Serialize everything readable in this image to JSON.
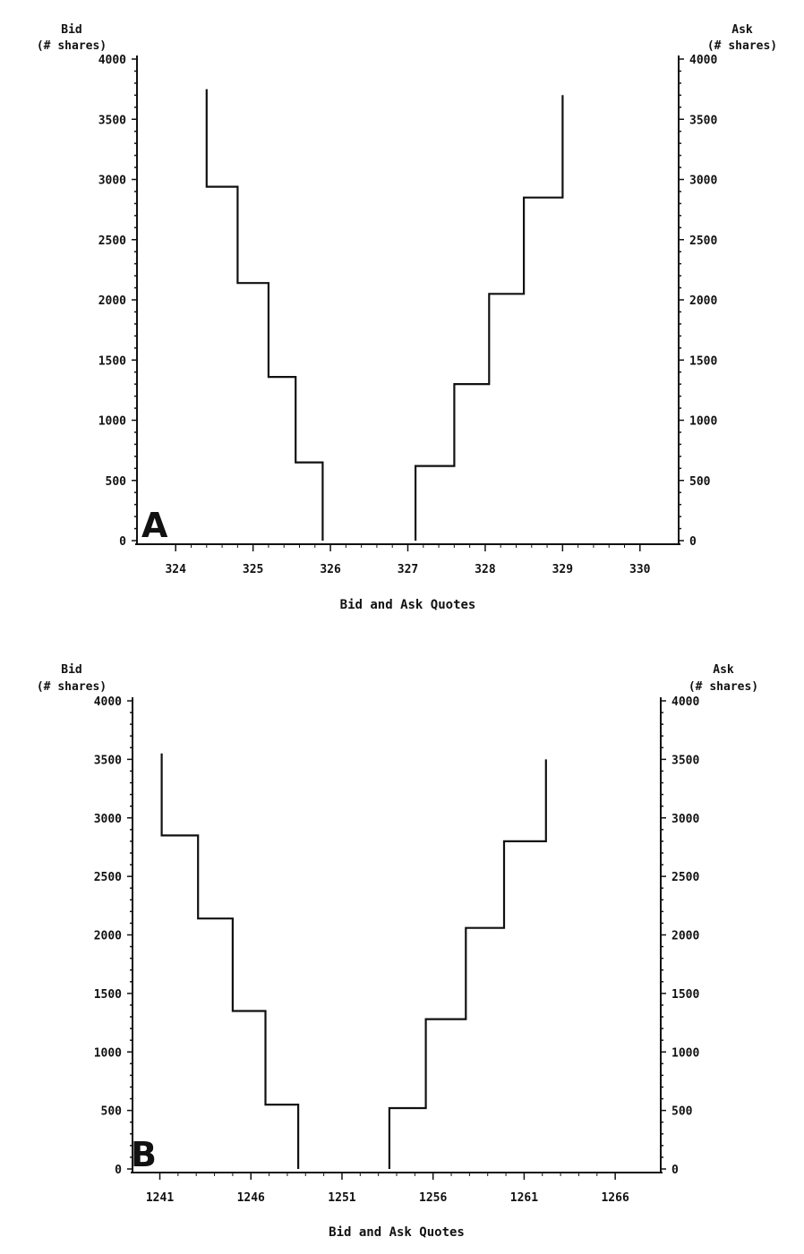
{
  "colors": {
    "ink": "#111111",
    "background": "#ffffff"
  },
  "chart_data": [
    {
      "type": "line",
      "panel_label": "A",
      "ylabel_left": [
        "Bid",
        "(# shares)"
      ],
      "ylabel_right": [
        "Ask",
        "(# shares)"
      ],
      "xlabel": "Bid and Ask Quotes",
      "xlim": [
        323.5,
        330.5
      ],
      "ylim": [
        0,
        4000
      ],
      "xticks": [
        324,
        325,
        326,
        327,
        328,
        329,
        330
      ],
      "yticks": [
        0,
        500,
        1000,
        1500,
        2000,
        2500,
        3000,
        3500,
        4000
      ],
      "grid": false,
      "series": [
        {
          "side": "bid",
          "x": [
            324.4,
            324.4,
            324.8,
            324.8,
            325.2,
            325.2,
            325.55,
            325.55,
            325.9,
            325.9
          ],
          "y": [
            3750,
            2940,
            2940,
            2140,
            2140,
            1360,
            1360,
            650,
            650,
            0
          ]
        },
        {
          "side": "ask",
          "x": [
            327.1,
            327.1,
            327.6,
            327.6,
            328.05,
            328.05,
            328.5,
            328.5,
            329.0,
            329.0
          ],
          "y": [
            0,
            620,
            620,
            1300,
            1300,
            2050,
            2050,
            2850,
            2850,
            3700
          ]
        }
      ]
    },
    {
      "type": "line",
      "panel_label": "B",
      "ylabel_left": [
        "Bid",
        "(# shares)"
      ],
      "ylabel_right": [
        "Ask",
        "(# shares)"
      ],
      "xlabel": "Bid and Ask Quotes",
      "xlim": [
        1239.5,
        1268.5
      ],
      "ylim": [
        0,
        4000
      ],
      "xticks": [
        1241,
        1246,
        1251,
        1256,
        1261,
        1266
      ],
      "yticks": [
        0,
        500,
        1000,
        1500,
        2000,
        2500,
        3000,
        3500,
        4000
      ],
      "grid": false,
      "series": [
        {
          "side": "bid",
          "x": [
            1241.1,
            1241.1,
            1243.1,
            1243.1,
            1245.0,
            1245.0,
            1246.8,
            1246.8,
            1248.6,
            1248.6
          ],
          "y": [
            3550,
            2850,
            2850,
            2140,
            2140,
            1350,
            1350,
            550,
            550,
            0
          ]
        },
        {
          "side": "ask",
          "x": [
            1253.6,
            1253.6,
            1255.6,
            1255.6,
            1257.8,
            1257.8,
            1259.9,
            1259.9,
            1262.2,
            1262.2
          ],
          "y": [
            0,
            520,
            520,
            1280,
            1280,
            2060,
            2060,
            2800,
            2800,
            3500
          ]
        }
      ]
    }
  ]
}
